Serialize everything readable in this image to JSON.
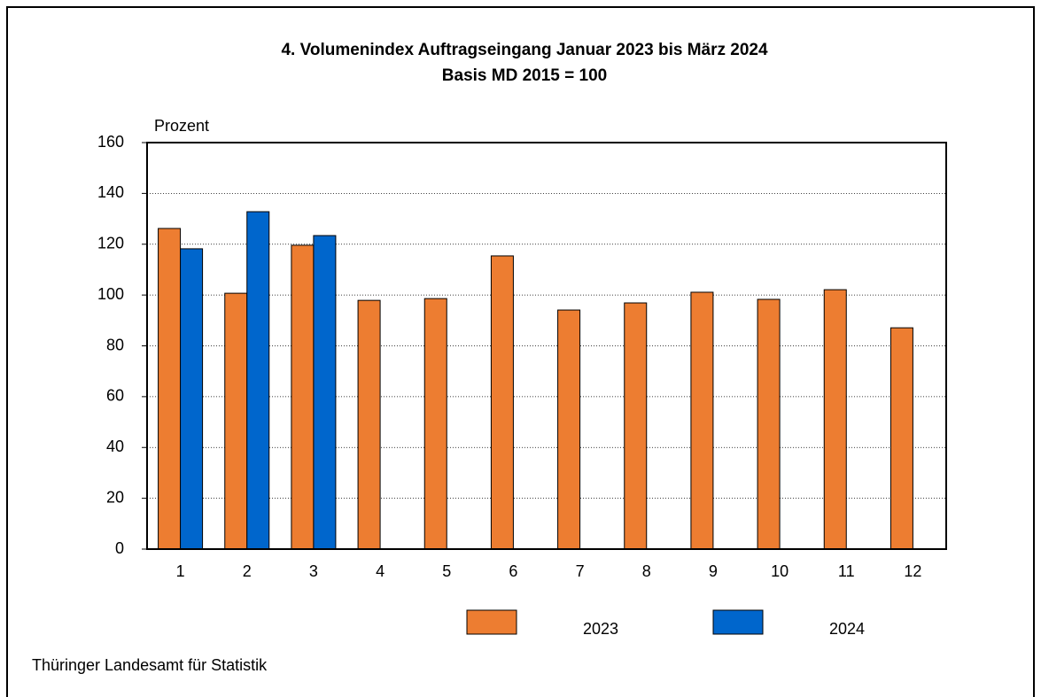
{
  "chart_data": {
    "type": "bar",
    "title": "4. Volumenindex Auftragseingang Januar 2023 bis März 2024",
    "subtitle": "Basis MD 2015 = 100",
    "y_label": "Prozent",
    "source": "Thüringer Landesamt für Statistik",
    "categories": [
      "1",
      "2",
      "3",
      "4",
      "5",
      "6",
      "7",
      "8",
      "9",
      "10",
      "11",
      "12"
    ],
    "series": [
      {
        "name": "2023",
        "color": "#ed7d31",
        "values": [
          126.2,
          100.7,
          119.6,
          97.9,
          98.6,
          115.4,
          94.1,
          96.9,
          101.1,
          98.3,
          102.1,
          87.1
        ]
      },
      {
        "name": "2024",
        "color": "#0066cc",
        "values": [
          118.2,
          132.8,
          123.4,
          null,
          null,
          null,
          null,
          null,
          null,
          null,
          null,
          null
        ]
      }
    ],
    "ylim": [
      0,
      160
    ],
    "yticks": [
      0,
      20,
      40,
      60,
      80,
      100,
      120,
      140,
      160
    ],
    "grid": true,
    "legend": "bottom"
  }
}
